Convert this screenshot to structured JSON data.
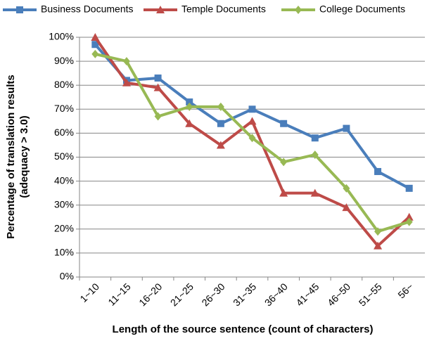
{
  "chart_data": {
    "type": "line",
    "xlabel": "Length of the source sentence (count of characters)",
    "ylabel": [
      "Percentage of translation results",
      "(adequacy > 3.0)"
    ],
    "categories": [
      "1~10",
      "11~15",
      "16~20",
      "21~25",
      "26~30",
      "31~35",
      "36~40",
      "41~45",
      "46~50",
      "51~55",
      "56~"
    ],
    "series": [
      {
        "name": "Business Documents",
        "color": "#4a7ebb",
        "marker": "square",
        "values": [
          97,
          82,
          83,
          73,
          64,
          70,
          64,
          58,
          62,
          44,
          37
        ]
      },
      {
        "name": "Temple Documents",
        "color": "#be4b48",
        "marker": "triangle",
        "values": [
          100,
          81,
          79,
          64,
          55,
          65,
          35,
          35,
          29,
          13,
          25
        ]
      },
      {
        "name": "College Documents",
        "color": "#98b954",
        "marker": "diamond",
        "values": [
          93,
          90,
          67,
          71,
          71,
          58,
          48,
          51,
          37,
          19,
          23
        ]
      }
    ],
    "ylim": [
      0,
      100
    ],
    "yticks": [
      {
        "value": 0,
        "label": "0%"
      },
      {
        "value": 10,
        "label": "10%"
      },
      {
        "value": 20,
        "label": "20%"
      },
      {
        "value": 30,
        "label": "30%"
      },
      {
        "value": 40,
        "label": "40%"
      },
      {
        "value": 50,
        "label": "50%"
      },
      {
        "value": 60,
        "label": "60%"
      },
      {
        "value": 70,
        "label": "70%"
      },
      {
        "value": 80,
        "label": "80%"
      },
      {
        "value": 90,
        "label": "90%"
      },
      {
        "value": 100,
        "label": "100%"
      }
    ],
    "grid": true,
    "legend": "top"
  }
}
